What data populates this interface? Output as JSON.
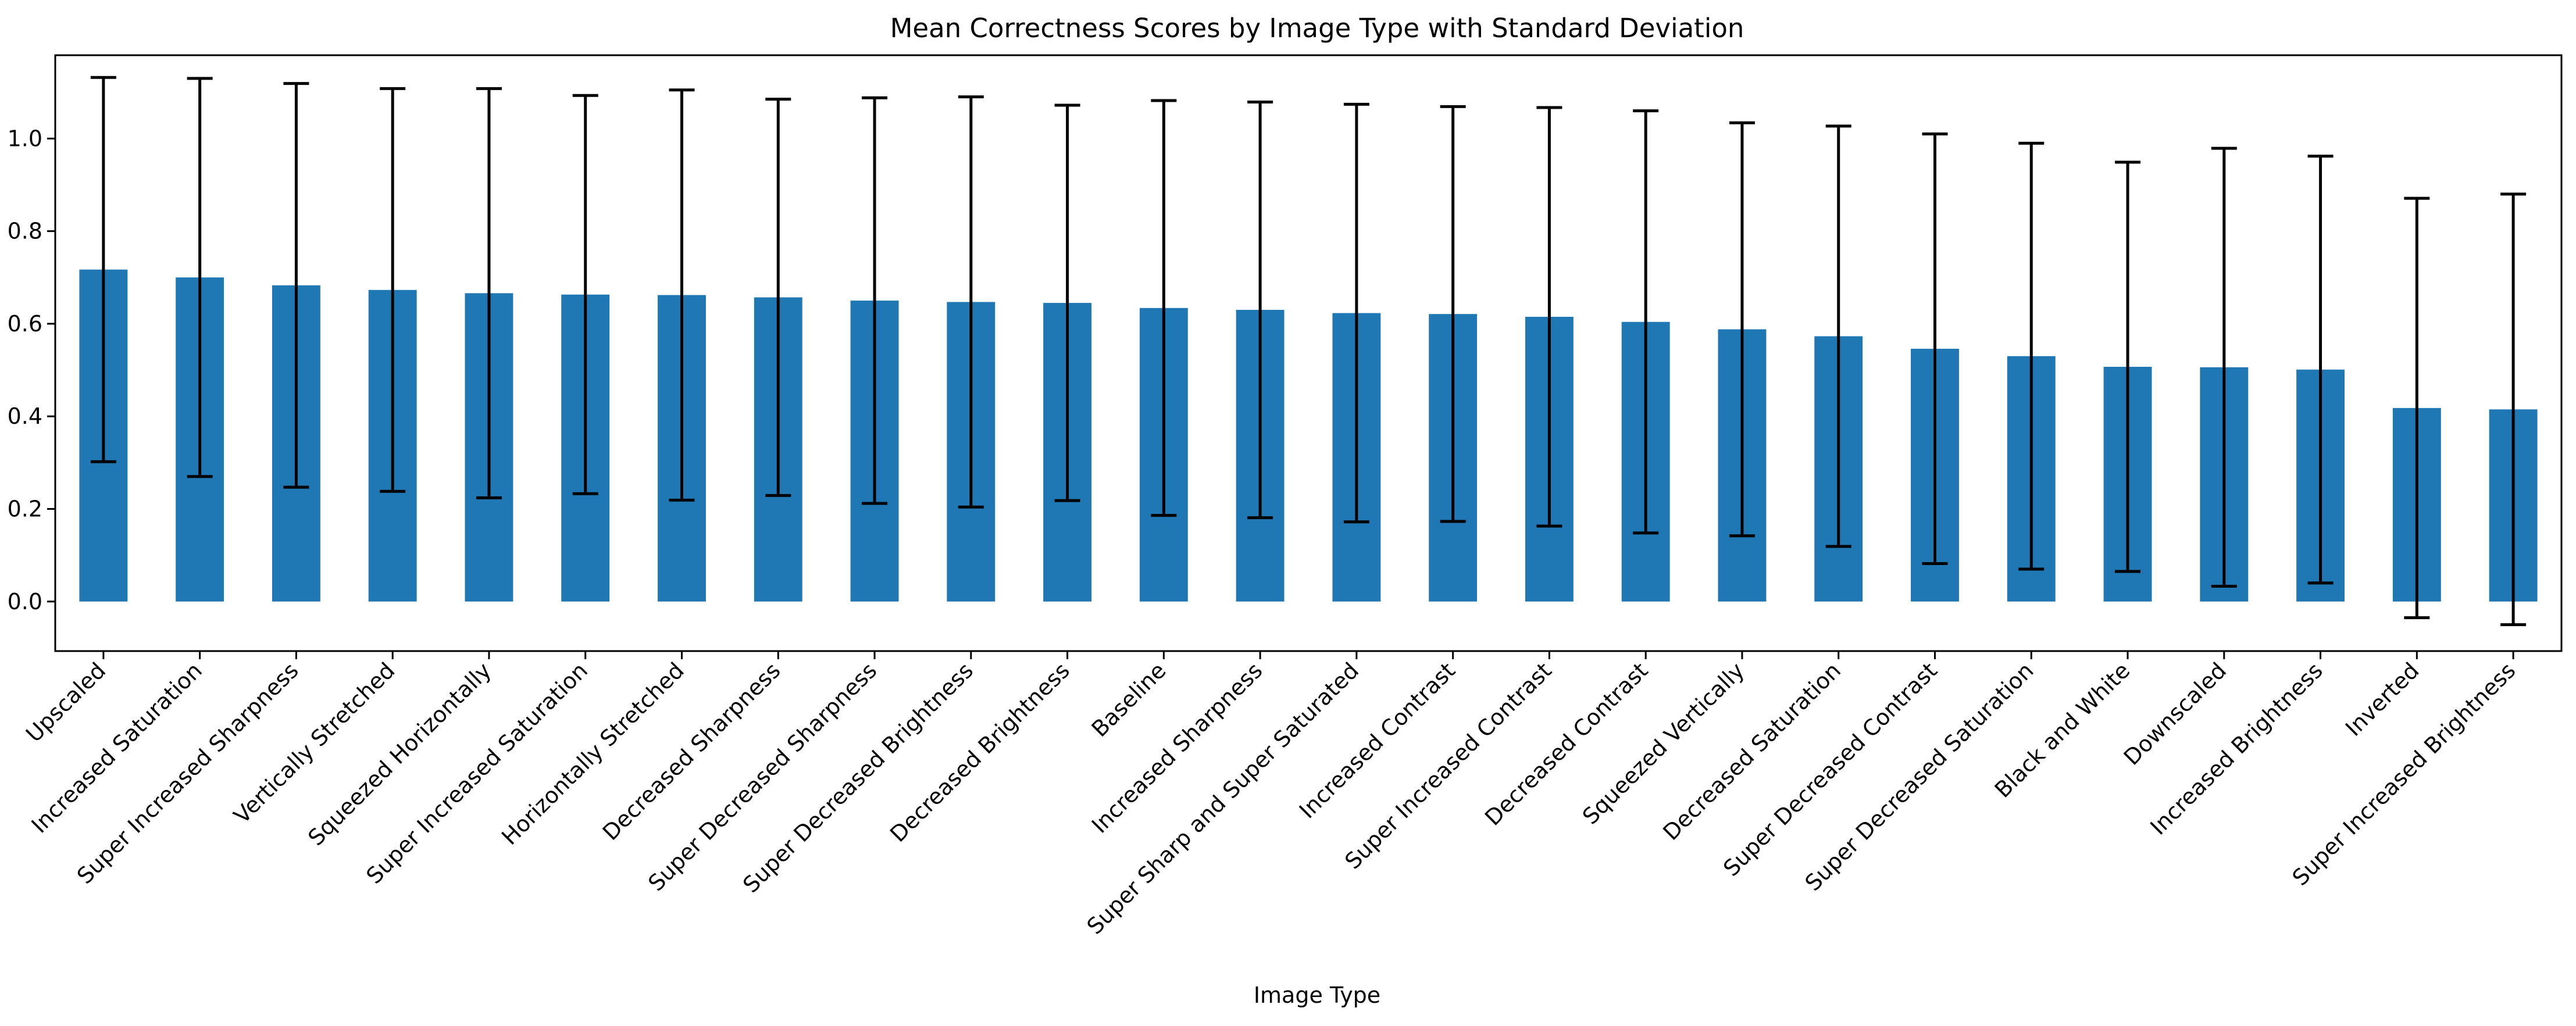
{
  "chart_data": {
    "type": "bar",
    "title": "Mean Correctness Scores by Image Type with Standard Deviation",
    "xlabel": "Image Type",
    "ylabel": "",
    "ylim": [
      -0.107,
      1.18
    ],
    "yticks": [
      0.0,
      0.2,
      0.4,
      0.6,
      0.8,
      1.0
    ],
    "grid": false,
    "legend": "none",
    "bar_color": "#1f77b4",
    "error_color": "#000000",
    "categories": [
      "Upscaled",
      "Increased Saturation",
      "Super Increased Sharpness",
      "Vertically Stretched",
      "Squeezed Horizontally",
      "Super Increased Saturation",
      "Horizontally Stretched",
      "Decreased Sharpness",
      "Super Decreased Sharpness",
      "Super Decreased Brightness",
      "Decreased Brightness",
      "Baseline",
      "Increased Sharpness",
      "Super Sharp and Super Saturated",
      "Increased Contrast",
      "Super Increased Contrast",
      "Decreased Contrast",
      "Squeezed Vertically",
      "Decreased Saturation",
      "Super Decreased Contrast",
      "Super Decreased Saturation",
      "Black and White",
      "Downscaled",
      "Increased Brightness",
      "Inverted",
      "Super Increased Brightness"
    ],
    "values": [
      0.717,
      0.7,
      0.683,
      0.673,
      0.666,
      0.663,
      0.662,
      0.657,
      0.65,
      0.647,
      0.645,
      0.634,
      0.63,
      0.623,
      0.621,
      0.615,
      0.604,
      0.588,
      0.573,
      0.546,
      0.53,
      0.507,
      0.506,
      0.501,
      0.418,
      0.415
    ],
    "std": [
      0.415,
      0.43,
      0.436,
      0.435,
      0.442,
      0.43,
      0.443,
      0.428,
      0.438,
      0.443,
      0.427,
      0.448,
      0.449,
      0.451,
      0.448,
      0.452,
      0.456,
      0.446,
      0.454,
      0.464,
      0.46,
      0.442,
      0.473,
      0.461,
      0.453,
      0.465
    ]
  }
}
